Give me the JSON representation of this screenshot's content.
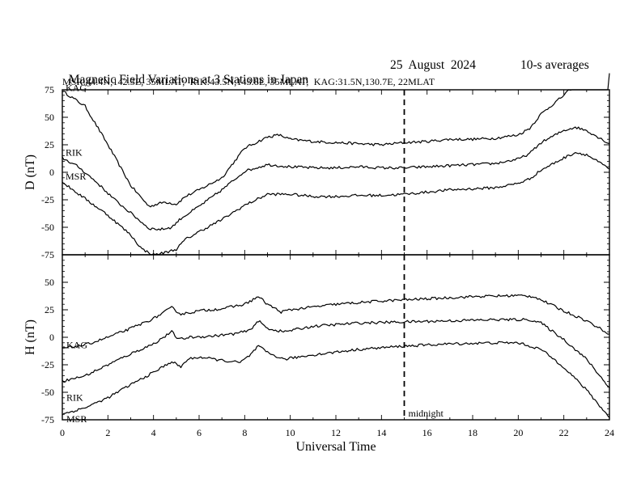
{
  "header": {
    "title": "Magnetic Field Variations at 3 Stations in Japan",
    "date": "25  August  2024",
    "averaging": "10-s averages",
    "stations": "MSR:44.4N,142.3E, 35MLAT;  RIK:43.5N,143.8E, 35MLAT;  KAG:31.5N,130.7E, 22MLAT"
  },
  "chart_data": {
    "type": "line",
    "xlabel": "Universal Time",
    "xlim": [
      0,
      24
    ],
    "x_ticks": [
      "0",
      "2",
      "4",
      "6",
      "8",
      "10",
      "12",
      "14",
      "16",
      "18",
      "20",
      "22",
      "24"
    ],
    "midnight_marker": {
      "x": 15,
      "label": "midnight"
    },
    "panels": [
      {
        "name": "D",
        "ylabel": "D (nT)",
        "ylim": [
          -75,
          75
        ],
        "y_ticks": [
          "75",
          "50",
          "25",
          "0",
          "-25",
          "-50",
          "-75"
        ],
        "series": [
          {
            "name": "KAG",
            "points": [
              [
                0,
                74
              ],
              [
                1,
                60
              ],
              [
                2,
                25
              ],
              [
                3,
                -12
              ],
              [
                3.8,
                -31
              ],
              [
                4.5,
                -27
              ],
              [
                5,
                -29
              ],
              [
                5.4,
                -22
              ],
              [
                6,
                -16
              ],
              [
                7,
                -5
              ],
              [
                8,
                22
              ],
              [
                9,
                32
              ],
              [
                9.5,
                34
              ],
              [
                10,
                30
              ],
              [
                11,
                28
              ],
              [
                12,
                27
              ],
              [
                13,
                26
              ],
              [
                14,
                25
              ],
              [
                15,
                27
              ],
              [
                16,
                28
              ],
              [
                17,
                30
              ],
              [
                18,
                30
              ],
              [
                19,
                31
              ],
              [
                20,
                34
              ],
              [
                20.5,
                40
              ],
              [
                21,
                53
              ],
              [
                22,
                70
              ],
              [
                22.5,
                80
              ],
              [
                23,
                85
              ],
              [
                24,
                90
              ]
            ]
          },
          {
            "name": "RIK",
            "points": [
              [
                0,
                13
              ],
              [
                0.7,
                5
              ],
              [
                1.5,
                -9
              ],
              [
                2.3,
                -25
              ],
              [
                3,
                -37
              ],
              [
                3.8,
                -51
              ],
              [
                4.3,
                -52
              ],
              [
                4.8,
                -50
              ],
              [
                5.2,
                -42
              ],
              [
                6,
                -31
              ],
              [
                7,
                -16
              ],
              [
                8,
                1
              ],
              [
                9,
                7
              ],
              [
                10,
                5
              ],
              [
                11,
                4
              ],
              [
                12,
                4
              ],
              [
                13,
                5
              ],
              [
                14,
                4
              ],
              [
                15,
                4
              ],
              [
                16,
                5
              ],
              [
                17,
                6
              ],
              [
                18,
                7
              ],
              [
                19,
                8
              ],
              [
                20,
                12
              ],
              [
                20.5,
                17
              ],
              [
                21,
                27
              ],
              [
                22,
                38
              ],
              [
                22.5,
                41
              ],
              [
                23,
                38
              ],
              [
                24,
                26
              ]
            ]
          },
          {
            "name": "MSR",
            "points": [
              [
                0,
                -9
              ],
              [
                1,
                -24
              ],
              [
                2,
                -39
              ],
              [
                3,
                -57
              ],
              [
                3.5,
                -70
              ],
              [
                4,
                -75
              ],
              [
                4.5,
                -73
              ],
              [
                5,
                -70
              ],
              [
                5.4,
                -61
              ],
              [
                6,
                -54
              ],
              [
                7,
                -43
              ],
              [
                8,
                -30
              ],
              [
                9,
                -20
              ],
              [
                10,
                -20
              ],
              [
                11,
                -22
              ],
              [
                12,
                -22
              ],
              [
                13,
                -21
              ],
              [
                14,
                -21
              ],
              [
                15,
                -20
              ],
              [
                16,
                -18
              ],
              [
                17,
                -16
              ],
              [
                18,
                -15
              ],
              [
                19,
                -14
              ],
              [
                20,
                -10
              ],
              [
                20.5,
                -6
              ],
              [
                21,
                2
              ],
              [
                22,
                13
              ],
              [
                22.5,
                18
              ],
              [
                23,
                16
              ],
              [
                24,
                3
              ]
            ]
          }
        ]
      },
      {
        "name": "H",
        "ylabel": "H (nT)",
        "ylim": [
          -75,
          75
        ],
        "y_ticks": [
          "75",
          "50",
          "25",
          "0",
          "-25",
          "-50",
          "-75"
        ],
        "series": [
          {
            "name": "KAG",
            "points": [
              [
                0,
                -10
              ],
              [
                1,
                -7
              ],
              [
                2,
                0
              ],
              [
                3,
                8
              ],
              [
                4,
                17
              ],
              [
                4.8,
                27
              ],
              [
                5.2,
                21
              ],
              [
                6,
                24
              ],
              [
                7,
                26
              ],
              [
                8,
                30
              ],
              [
                8.6,
                37
              ],
              [
                9,
                30
              ],
              [
                9.6,
                23
              ],
              [
                10,
                25
              ],
              [
                12,
                30
              ],
              [
                14,
                33
              ],
              [
                16,
                35
              ],
              [
                18,
                37
              ],
              [
                20,
                38
              ],
              [
                20.7,
                37
              ],
              [
                21,
                34
              ],
              [
                22,
                24
              ],
              [
                23,
                15
              ],
              [
                24,
                3
              ]
            ]
          },
          {
            "name": "RIK",
            "points": [
              [
                0,
                -40
              ],
              [
                1,
                -35
              ],
              [
                2,
                -25
              ],
              [
                3,
                -15
              ],
              [
                4,
                -6
              ],
              [
                4.8,
                5
              ],
              [
                5.1,
                -2
              ],
              [
                5.6,
                0
              ],
              [
                6.5,
                1
              ],
              [
                7.5,
                3
              ],
              [
                8.2,
                6
              ],
              [
                8.6,
                15
              ],
              [
                9,
                8
              ],
              [
                9.7,
                5
              ],
              [
                11,
                10
              ],
              [
                13,
                13
              ],
              [
                15,
                14
              ],
              [
                17,
                15
              ],
              [
                19,
                16
              ],
              [
                20.5,
                16
              ],
              [
                21,
                13
              ],
              [
                22,
                -2
              ],
              [
                23,
                -20
              ],
              [
                24,
                -46
              ]
            ]
          },
          {
            "name": "MSR",
            "points": [
              [
                0,
                -70
              ],
              [
                1,
                -64
              ],
              [
                2,
                -55
              ],
              [
                3,
                -43
              ],
              [
                4,
                -32
              ],
              [
                4.8,
                -22
              ],
              [
                5.2,
                -27
              ],
              [
                5.5,
                -20
              ],
              [
                6,
                -18
              ],
              [
                7,
                -21
              ],
              [
                7.8,
                -23
              ],
              [
                8.2,
                -17
              ],
              [
                8.6,
                -8
              ],
              [
                9,
                -14
              ],
              [
                9.7,
                -20
              ],
              [
                11,
                -16
              ],
              [
                13,
                -11
              ],
              [
                15,
                -8
              ],
              [
                17,
                -6
              ],
              [
                19,
                -5
              ],
              [
                20,
                -5
              ],
              [
                21,
                -11
              ],
              [
                22,
                -27
              ],
              [
                23,
                -48
              ],
              [
                24,
                -73
              ]
            ]
          }
        ]
      }
    ]
  }
}
